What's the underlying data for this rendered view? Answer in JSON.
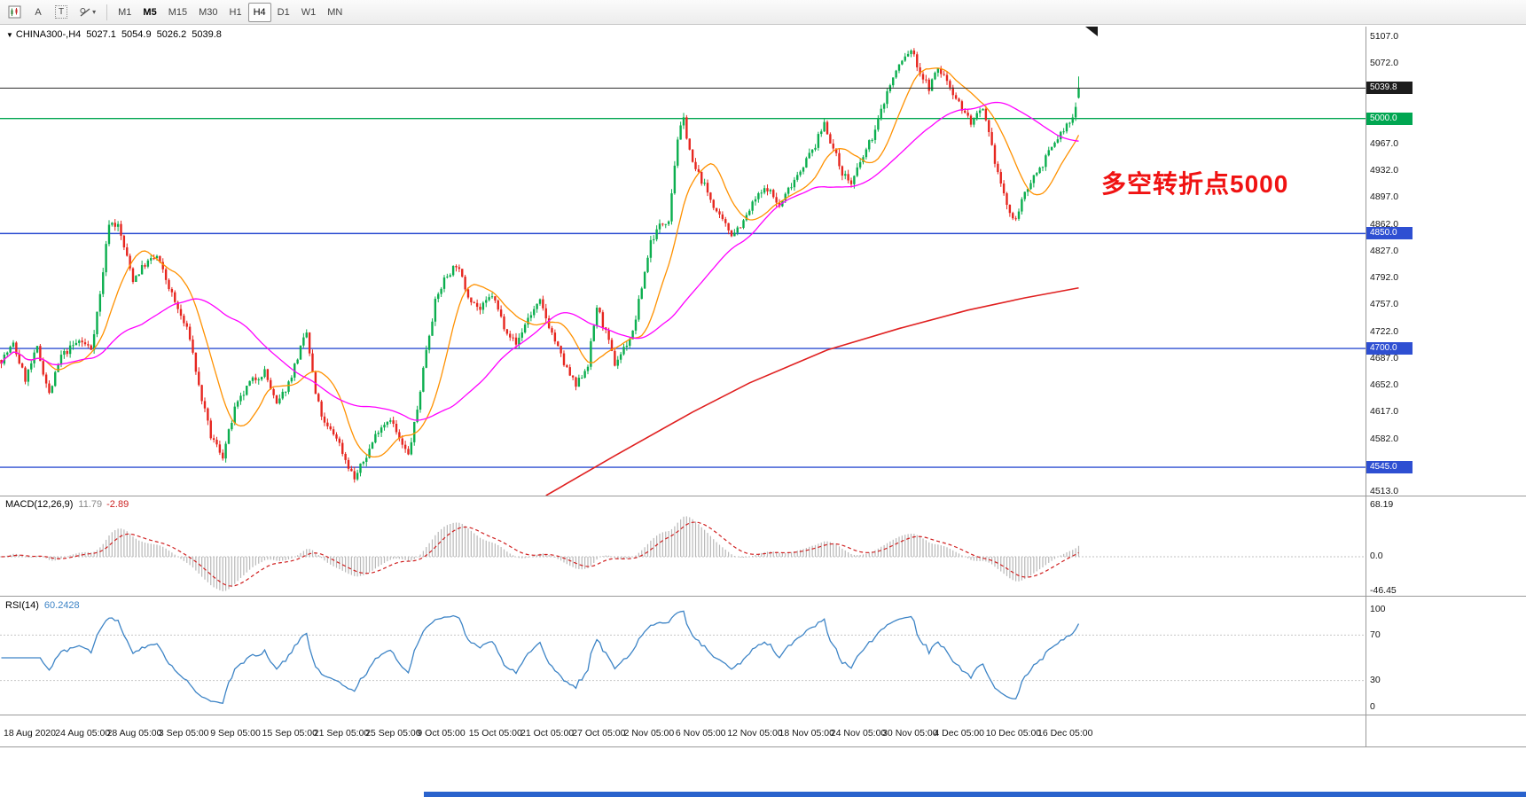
{
  "toolbar": {
    "tools": [
      {
        "name": "chart-window"
      },
      {
        "name": "text-tool",
        "label": "A"
      },
      {
        "name": "label-tool",
        "label": "T"
      },
      {
        "name": "shapes-tool"
      }
    ],
    "timeframes": [
      {
        "label": "M1"
      },
      {
        "label": "M5",
        "emphasized": true
      },
      {
        "label": "M15"
      },
      {
        "label": "M30"
      },
      {
        "label": "H1"
      },
      {
        "label": "H4",
        "active": true
      },
      {
        "label": "D1"
      },
      {
        "label": "W1"
      },
      {
        "label": "MN"
      }
    ]
  },
  "quote": {
    "symbol": "CHINA300-,H4",
    "open": "5027.1",
    "high": "5054.9",
    "low": "5026.2",
    "close": "5039.8"
  },
  "annotation": {
    "text": "多空转折点5000",
    "color": "#f01212"
  },
  "indicators": {
    "macd": {
      "label": "MACD(12,26,9)",
      "value_main": "11.79",
      "value_signal": "-2.89"
    },
    "rsi": {
      "label": "RSI(14)",
      "value": "60.2428"
    }
  },
  "chart_data": {
    "type": "candlestick",
    "symbol": "CHINA300-",
    "timeframe": "H4",
    "ohlc_display": {
      "open": 5027.1,
      "high": 5054.9,
      "low": 5026.2,
      "close": 5039.8
    },
    "y_range": [
      4508,
      5120
    ],
    "candle_count": 361,
    "noise": 5,
    "wick": 6,
    "seed": 7,
    "candles_approximated_from_waypoints": true,
    "close_waypoints": [
      [
        0,
        4685
      ],
      [
        4,
        4705
      ],
      [
        8,
        4660
      ],
      [
        12,
        4700
      ],
      [
        16,
        4640
      ],
      [
        20,
        4690
      ],
      [
        26,
        4710
      ],
      [
        30,
        4700
      ],
      [
        33,
        4770
      ],
      [
        36,
        4865
      ],
      [
        39,
        4860
      ],
      [
        44,
        4790
      ],
      [
        48,
        4810
      ],
      [
        52,
        4820
      ],
      [
        58,
        4760
      ],
      [
        63,
        4715
      ],
      [
        66,
        4650
      ],
      [
        70,
        4585
      ],
      [
        74,
        4560
      ],
      [
        78,
        4620
      ],
      [
        83,
        4655
      ],
      [
        88,
        4670
      ],
      [
        92,
        4625
      ],
      [
        96,
        4655
      ],
      [
        100,
        4700
      ],
      [
        102,
        4720
      ],
      [
        105,
        4640
      ],
      [
        108,
        4600
      ],
      [
        112,
        4585
      ],
      [
        115,
        4555
      ],
      [
        118,
        4530
      ],
      [
        122,
        4560
      ],
      [
        126,
        4595
      ],
      [
        130,
        4610
      ],
      [
        133,
        4580
      ],
      [
        136,
        4560
      ],
      [
        139,
        4620
      ],
      [
        142,
        4700
      ],
      [
        145,
        4760
      ],
      [
        148,
        4790
      ],
      [
        152,
        4810
      ],
      [
        156,
        4770
      ],
      [
        160,
        4750
      ],
      [
        164,
        4770
      ],
      [
        168,
        4730
      ],
      [
        172,
        4705
      ],
      [
        176,
        4740
      ],
      [
        180,
        4760
      ],
      [
        184,
        4720
      ],
      [
        188,
        4680
      ],
      [
        192,
        4650
      ],
      [
        196,
        4680
      ],
      [
        199,
        4755
      ],
      [
        202,
        4720
      ],
      [
        205,
        4680
      ],
      [
        208,
        4700
      ],
      [
        211,
        4720
      ],
      [
        214,
        4780
      ],
      [
        217,
        4840
      ],
      [
        220,
        4860
      ],
      [
        223,
        4870
      ],
      [
        226,
        4975
      ],
      [
        228,
        4998
      ],
      [
        231,
        4940
      ],
      [
        234,
        4920
      ],
      [
        237,
        4895
      ],
      [
        240,
        4870
      ],
      [
        244,
        4850
      ],
      [
        248,
        4865
      ],
      [
        252,
        4895
      ],
      [
        256,
        4910
      ],
      [
        260,
        4885
      ],
      [
        264,
        4915
      ],
      [
        268,
        4940
      ],
      [
        272,
        4965
      ],
      [
        275,
        4995
      ],
      [
        278,
        4960
      ],
      [
        281,
        4930
      ],
      [
        284,
        4915
      ],
      [
        288,
        4950
      ],
      [
        292,
        4985
      ],
      [
        296,
        5035
      ],
      [
        300,
        5070
      ],
      [
        304,
        5090
      ],
      [
        307,
        5060
      ],
      [
        310,
        5040
      ],
      [
        313,
        5065
      ],
      [
        316,
        5050
      ],
      [
        320,
        5020
      ],
      [
        324,
        4995
      ],
      [
        328,
        5010
      ],
      [
        332,
        4945
      ],
      [
        335,
        4900
      ],
      [
        338,
        4865
      ],
      [
        341,
        4890
      ],
      [
        344,
        4920
      ],
      [
        347,
        4935
      ],
      [
        350,
        4955
      ],
      [
        353,
        4975
      ],
      [
        356,
        4990
      ],
      [
        358,
        5000
      ],
      [
        360,
        5039.8
      ]
    ],
    "levels": [
      {
        "price": 5039.8,
        "color": "#2b2b2b",
        "width": 1,
        "role": "last-price"
      },
      {
        "price": 5000.0,
        "color": "#00a651",
        "width": 1.4,
        "role": "horizontal-line"
      },
      {
        "price": 4850.0,
        "color": "#2e4fd2",
        "width": 1.4,
        "role": "horizontal-line"
      },
      {
        "price": 4700.0,
        "color": "#2e4fd2",
        "width": 1.4,
        "role": "horizontal-line"
      },
      {
        "price": 4545.0,
        "color": "#2e4fd2",
        "width": 1.4,
        "role": "horizontal-line"
      }
    ],
    "ma_fast": {
      "period": 14,
      "color": "#ff9100"
    },
    "ma_medium": {
      "period": 48,
      "color": "#ff00ff"
    },
    "long_ma": {
      "color": "#e02020",
      "points": [
        [
          182,
          4508
        ],
        [
          205,
          4560
        ],
        [
          231,
          4617
        ],
        [
          250,
          4655
        ],
        [
          276,
          4698
        ],
        [
          300,
          4726
        ],
        [
          323,
          4750
        ],
        [
          342,
          4766
        ],
        [
          360,
          4779
        ]
      ]
    },
    "price_axis_ticks": [
      {
        "label": "5107.0",
        "price": 5107
      },
      {
        "label": "5072.0",
        "price": 5072
      },
      {
        "label": "4967.0",
        "price": 4967
      },
      {
        "label": "4932.0",
        "price": 4932
      },
      {
        "label": "4897.0",
        "price": 4897
      },
      {
        "label": "4862.0",
        "price": 4862
      },
      {
        "label": "4827.0",
        "price": 4827
      },
      {
        "label": "4792.0",
        "price": 4792
      },
      {
        "label": "4757.0",
        "price": 4757
      },
      {
        "label": "4722.0",
        "price": 4722
      },
      {
        "label": "4687.0",
        "price": 4687
      },
      {
        "label": "4652.0",
        "price": 4652
      },
      {
        "label": "4617.0",
        "price": 4617
      },
      {
        "label": "4582.0",
        "price": 4582
      },
      {
        "label": "4513.0",
        "price": 4513
      }
    ],
    "price_badges": [
      {
        "label": "5039.8",
        "price": 5039.8,
        "color": "#1c1c1c"
      },
      {
        "label": "5000.0",
        "price": 5000,
        "color": "#00a651"
      },
      {
        "label": "4850.0",
        "price": 4850,
        "color": "#2e4fd2"
      },
      {
        "label": "4700.0",
        "price": 4700,
        "color": "#2e4fd2"
      },
      {
        "label": "4545.0",
        "price": 4545,
        "color": "#2e4fd2"
      }
    ],
    "time_labels": [
      "18 Aug 2020",
      "24 Aug 05:00",
      "28 Aug 05:00",
      "3 Sep 05:00",
      "9 Sep 05:00",
      "15 Sep 05:00",
      "21 Sep 05:00",
      "25 Sep 05:00",
      "9 Oct 05:00",
      "15 Oct 05:00",
      "21 Oct 05:00",
      "27 Oct 05:00",
      "2 Nov 05:00",
      "6 Nov 05:00",
      "12 Nov 05:00",
      "18 Nov 05:00",
      "24 Nov 05:00",
      "30 Nov 05:00",
      "4 Dec 05:00",
      "10 Dec 05:00",
      "16 Dec 05:00"
    ],
    "macd": {
      "fast": 12,
      "slow": 26,
      "signal": 9,
      "display_main": 11.79,
      "display_signal": -2.89,
      "axis": [
        "68.19",
        "0.0",
        "-46.45"
      ]
    },
    "rsi": {
      "period": 14,
      "display": 60.2428,
      "axis": [
        "100",
        "70",
        "30",
        "0"
      ],
      "levels": [
        70,
        30
      ]
    },
    "colors": {
      "up": "#0bae4e",
      "down": "#e6261f",
      "macd_hist": "#b8b8b8",
      "macd_signal": "#d02020",
      "rsi": "#3d84c6"
    }
  }
}
